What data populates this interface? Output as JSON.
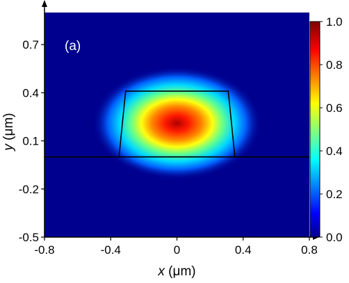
{
  "chart_data": {
    "type": "heatmap",
    "panel_label": "(a)",
    "xlabel_var": "x",
    "xlabel_unit": " (μm)",
    "ylabel_var": "y",
    "ylabel_unit": " (μm)",
    "xlim": [
      -0.8,
      0.8
    ],
    "ylim": [
      -0.5,
      0.9
    ],
    "x_ticks": [
      -0.8,
      -0.4,
      0,
      0.4,
      0.8
    ],
    "x_tick_labels": [
      "-0.8",
      "-0.4",
      "0",
      "0.4",
      "0.8"
    ],
    "y_ticks": [
      -0.5,
      -0.2,
      0.1,
      0.4,
      0.7
    ],
    "y_tick_labels": [
      "-0.5",
      "-0.2",
      "0.1",
      "0.4",
      "0.7"
    ],
    "colorbar": {
      "range": [
        0.0,
        1.0
      ],
      "ticks": [
        0.0,
        0.2,
        0.4,
        0.6,
        0.8,
        1.0
      ],
      "tick_labels": [
        "0.0",
        "0.2",
        "0.4",
        "0.6",
        "0.8",
        "1.0"
      ],
      "colormap": "jet"
    },
    "field": {
      "peak_value": 1.0,
      "center": [
        0.0,
        0.21
      ],
      "sigma_x": 0.15,
      "sigma_y": 0.11
    },
    "waveguide_outline": {
      "top_y": 0.41,
      "bottom_y": 0.0,
      "top_x": [
        -0.31,
        0.31
      ],
      "bottom_x": [
        -0.35,
        0.35
      ]
    },
    "substrate_line_y": 0.0
  }
}
